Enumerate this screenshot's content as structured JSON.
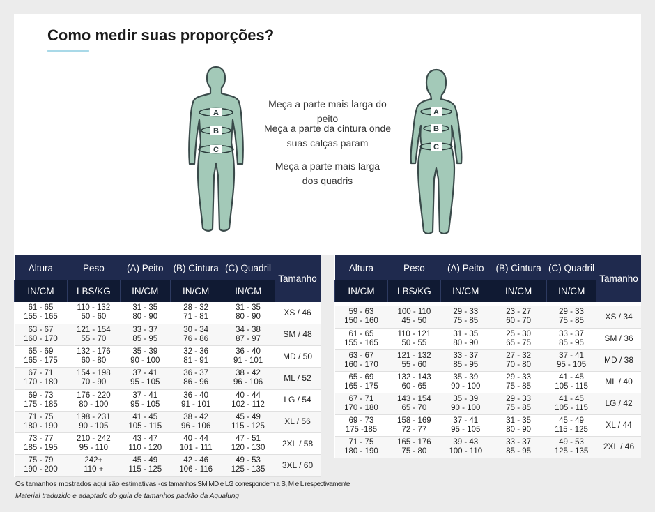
{
  "title": "Como medir suas proporções?",
  "instructions": {
    "chest": "Meça a parte mais larga do peito",
    "waist_l1": "Meça a parte da cintura onde",
    "waist_l2": "suas calças param",
    "hips_l1": "Meça a parte mais larga",
    "hips_l2": "dos quadris"
  },
  "labels": {
    "a": "A",
    "b": "B",
    "c": "C"
  },
  "colors": {
    "figure_fill": "#a3c9b8",
    "figure_stroke": "#3a4a4a",
    "header_bg": "#1f2a4e",
    "subheader_bg": "#101a33"
  },
  "headers": {
    "altura": "Altura",
    "peso": "Peso",
    "peito": "(A) Peito",
    "cintura": "(B) Cintura",
    "quadril": "(C) Quadril",
    "tamanho": "Tamanho",
    "in_cm": "IN/CM",
    "lbs_kg": "LBS/KG"
  },
  "men_table": [
    {
      "alt1": "61 - 65",
      "alt2": "155 - 165",
      "peso1": "110 - 132",
      "peso2": "50 - 60",
      "peito1": "31 - 35",
      "peito2": "80 - 90",
      "cint1": "28 - 32",
      "cint2": "71 - 81",
      "quad1": "31 - 35",
      "quad2": "80 - 90",
      "tam": "XS / 46"
    },
    {
      "alt1": "63 - 67",
      "alt2": "160 - 170",
      "peso1": "121 - 154",
      "peso2": "55 - 70",
      "peito1": "33 - 37",
      "peito2": "85 - 95",
      "cint1": "30 - 34",
      "cint2": "76 - 86",
      "quad1": "34 - 38",
      "quad2": "87 - 97",
      "tam": "SM / 48"
    },
    {
      "alt1": "65 - 69",
      "alt2": "165 - 175",
      "peso1": "132 - 176",
      "peso2": "60 - 80",
      "peito1": "35 - 39",
      "peito2": "90 - 100",
      "cint1": "32 - 36",
      "cint2": "81 - 91",
      "quad1": "36 - 40",
      "quad2": "91 - 101",
      "tam": "MD / 50"
    },
    {
      "alt1": "67 - 71",
      "alt2": "170 - 180",
      "peso1": "154 - 198",
      "peso2": "70 - 90",
      "peito1": "37 - 41",
      "peito2": "95 - 105",
      "cint1": "36 - 37",
      "cint2": "86 - 96",
      "quad1": "38 - 42",
      "quad2": "96 - 106",
      "tam": "ML / 52"
    },
    {
      "alt1": "69 - 73",
      "alt2": "175 - 185",
      "peso1": "176 - 220",
      "peso2": "80 - 100",
      "peito1": "37 - 41",
      "peito2": "95 - 105",
      "cint1": "36 - 40",
      "cint2": "91 - 101",
      "quad1": "40 - 44",
      "quad2": "102 - 112",
      "tam": "LG / 54"
    },
    {
      "alt1": "71 - 75",
      "alt2": "180 - 190",
      "peso1": "198 - 231",
      "peso2": "90 - 105",
      "peito1": "41 - 45",
      "peito2": "105 - 115",
      "cint1": "38 - 42",
      "cint2": "96 - 106",
      "quad1": "45 - 49",
      "quad2": "115 - 125",
      "tam": "XL / 56"
    },
    {
      "alt1": "73 - 77",
      "alt2": "185 - 195",
      "peso1": "210 - 242",
      "peso2": "95 - 110",
      "peito1": "43 - 47",
      "peito2": "110 - 120",
      "cint1": "40 - 44",
      "cint2": "101 - 111",
      "quad1": "47 - 51",
      "quad2": "120 - 130",
      "tam": "2XL / 58"
    },
    {
      "alt1": "75 - 79",
      "alt2": "190 - 200",
      "peso1": "242+",
      "peso2": "110 +",
      "peito1": "45 - 49",
      "peito2": "115 - 125",
      "cint1": "42 - 46",
      "cint2": "106 - 116",
      "quad1": "49 - 53",
      "quad2": "125 - 135",
      "tam": "3XL / 60"
    }
  ],
  "women_table": [
    {
      "alt1": "59 - 63",
      "alt2": "150 - 160",
      "peso1": "100 - 110",
      "peso2": "45 - 50",
      "peito1": "29 - 33",
      "peito2": "75 - 85",
      "cint1": "23 - 27",
      "cint2": "60 - 70",
      "quad1": "29 - 33",
      "quad2": "75 - 85",
      "tam": "XS / 34"
    },
    {
      "alt1": "61 - 65",
      "alt2": "155 - 165",
      "peso1": "110 - 121",
      "peso2": "50 - 55",
      "peito1": "31 - 35",
      "peito2": "80 - 90",
      "cint1": "25 - 30",
      "cint2": "65 - 75",
      "quad1": "33 - 37",
      "quad2": "85 - 95",
      "tam": "SM / 36"
    },
    {
      "alt1": "63 - 67",
      "alt2": "160 - 170",
      "peso1": "121 - 132",
      "peso2": "55 - 60",
      "peito1": "33 - 37",
      "peito2": "85 - 95",
      "cint1": "27 - 32",
      "cint2": "70 - 80",
      "quad1": "37 - 41",
      "quad2": "95 - 105",
      "tam": "MD / 38"
    },
    {
      "alt1": "65 - 69",
      "alt2": "165 - 175",
      "peso1": "132 - 143",
      "peso2": "60 - 65",
      "peito1": "35 - 39",
      "peito2": "90 - 100",
      "cint1": "29 - 33",
      "cint2": "75 - 85",
      "quad1": "41 - 45",
      "quad2": "105 - 115",
      "tam": "ML / 40"
    },
    {
      "alt1": "67 - 71",
      "alt2": "170 - 180",
      "peso1": "143 - 154",
      "peso2": "65 - 70",
      "peito1": "35 - 39",
      "peito2": "90 - 100",
      "cint1": "29 - 33",
      "cint2": "75 - 85",
      "quad1": "41 - 45",
      "quad2": "105 - 115",
      "tam": "LG / 42"
    },
    {
      "alt1": "69 - 73",
      "alt2": "175 -185",
      "peso1": "158 - 169",
      "peso2": "72 - 77",
      "peito1": "37 - 41",
      "peito2": "95 - 105",
      "cint1": "31 - 35",
      "cint2": "80 - 90",
      "quad1": "45 - 49",
      "quad2": "115 - 125",
      "tam": "XL / 44"
    },
    {
      "alt1": "71 - 75",
      "alt2": "180 - 190",
      "peso1": "165 - 176",
      "peso2": "75 - 80",
      "peito1": "39 - 43",
      "peito2": "100 - 110",
      "cint1": "33 - 37",
      "cint2": "85 - 95",
      "quad1": "49 - 53",
      "quad2": "125 - 135",
      "tam": "2XL / 46"
    }
  ],
  "footnote1_a": "Os tamanhos mostrados aqui são estimativas -",
  "footnote1_b": "os tamanhos SM,MD e LG correspondem a S, M e L respectivamente",
  "footnote2": "Material traduzido e adaptado do guia de tamanhos padrão da Aqualung"
}
